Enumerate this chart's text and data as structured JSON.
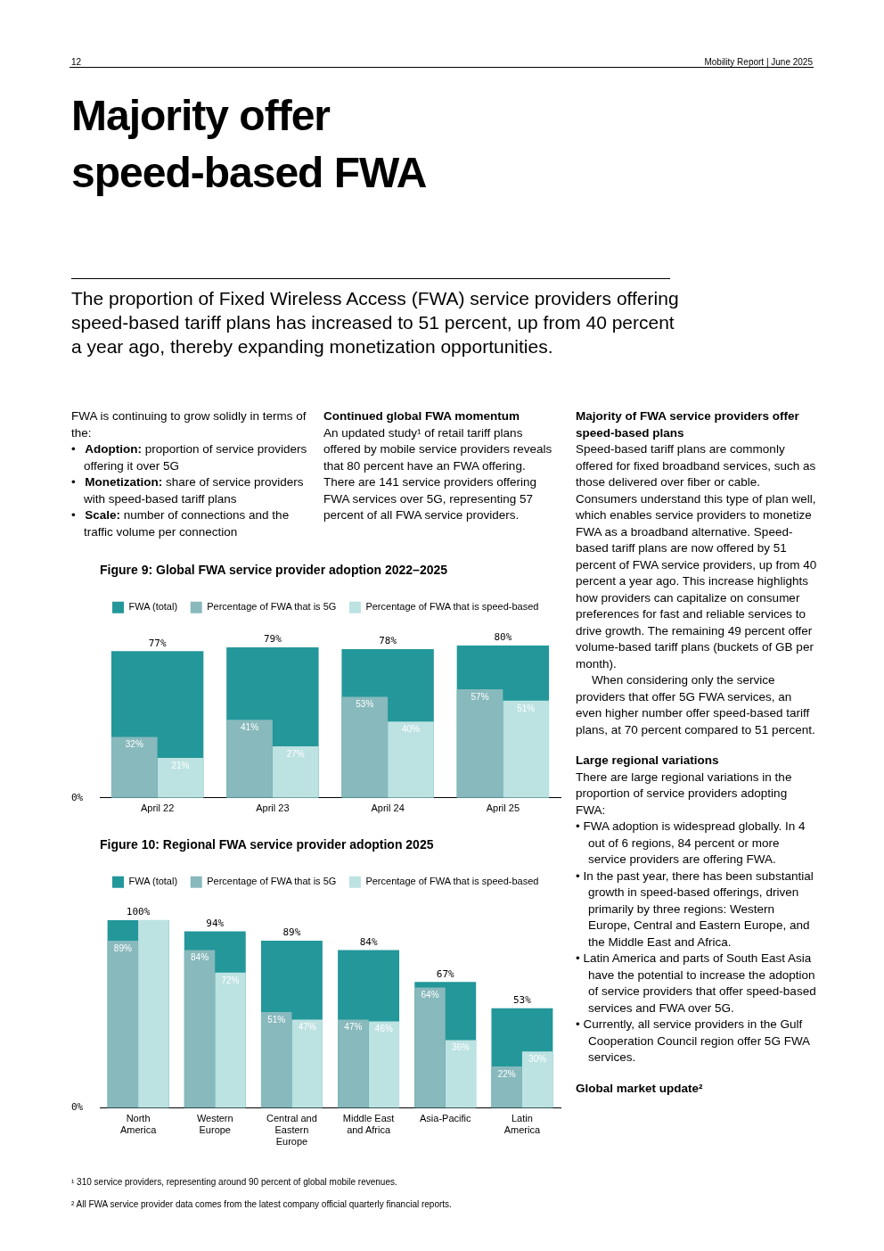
{
  "chart_data": [
    {
      "type": "other",
      "title": "Majority offer speed-based FWA",
      "subtitle": "The proportion of Fixed Wireless Access (FWA) service providers offering speed-based tariff plans has increased to 51 percent, up from 40 percent a year ago, thereby expanding monetization opportunities.",
      "annotations": [
        "12",
        "Mobility Report | June 2025",
        "FWA is continuing to grow solidly in terms of the:",
        "• Adoption: proportion of service providers offering it over 5G",
        "• Monetization: share of service providers with speed-based tariff plans",
        "• Scale: number of connections and the traffic volume per connection",
        "Continued global FWA momentum",
        "An updated study¹ of retail tariff plans offered by mobile service providers reveals that 80 percent have an FWA offering. There are 141 service providers offering FWA services over 5G, representing 57 percent of all FWA service providers.",
        "Majority of FWA service providers offer speed-based plans",
        "Speed-based tariff plans are commonly offered for fixed broadband services, such as those delivered over fiber or cable. Consumers understand this type of plan well, which enables service providers to monetize FWA as a broadband alternative. Speed-based tariff plans are now offered by 51 percent of FWA service providers, up from 40 percent a year ago. This increase highlights how providers can capitalize on consumer preferences for fast and reliable services to drive growth. The remaining 49 percent offer volume-based tariff plans (buckets of GB per month).",
        "When considering only the service providers that offer 5G FWA services, an even higher number offer speed-based tariff plans, at 70 percent compared to 51 percent.",
        "Large regional variations",
        "There are large regional variations in the proportion of service providers adopting FWA:",
        "• FWA adoption is widespread globally. In 4 out of 6 regions, 84 percent or more service providers are offering FWA.",
        "• In the past year, there has been substantial growth in speed-based offerings, driven primarily by three regions: Western Europe, Central and Eastern Europe, and the Middle East and Africa.",
        "• Latin America and parts of South East Asia have the potential to increase the adoption of service providers that offer speed-based services and FWA over 5G.",
        "• Currently, all service providers in the Gulf Cooperation Council region offer 5G FWA services.",
        "Global market update²",
        "¹ 310 service providers, representing around 90 percent of global mobile revenues.",
        "² All FWA service provider data comes from the latest company official quarterly financial reports."
      ]
    },
    {
      "type": "bar",
      "title": "Figure 9: Global FWA service provider adoption 2022–2025",
      "categories": [
        "April 22",
        "April 23",
        "April 24",
        "April 25"
      ],
      "annotations": [
        "0%"
      ],
      "grid": false,
      "legend": "top left",
      "series": [
        {
          "name": "FWA (total)",
          "color": "#23979a",
          "values": [
            77,
            79,
            78,
            80
          ],
          "value_labels": [
            "77%",
            "79%",
            "78%",
            "80%"
          ]
        },
        {
          "name": "Percentage of FWA that is 5G",
          "color": "#88b9bc",
          "values": [
            32,
            41,
            53,
            57
          ],
          "value_labels": [
            "32%",
            "41%",
            "53%",
            "57%"
          ]
        },
        {
          "name": "Percentage of FWA that is speed-based",
          "color": "#bde2e2",
          "values": [
            21,
            27,
            40,
            51
          ],
          "value_labels": [
            "21%",
            "27%",
            "40%",
            "51%"
          ]
        }
      ]
    },
    {
      "type": "bar",
      "title": "Figure 10: Regional FWA service provider adoption 2025",
      "categories": [
        "North America",
        "Western Europe",
        "Central and Eastern Europe",
        "Middle East and Africa",
        "Asia-Pacific",
        "Latin America"
      ],
      "annotations": [
        "0%"
      ],
      "grid": false,
      "legend": "top left",
      "series": [
        {
          "name": "FWA (total)",
          "color": "#23979a",
          "values": [
            100,
            94,
            89,
            84,
            67,
            53
          ],
          "value_labels": [
            "100%",
            "94%",
            "89%",
            "84%",
            "67%",
            "53%"
          ]
        },
        {
          "name": "Percentage of FWA that is 5G",
          "color": "#88b9bc",
          "values": [
            89,
            84,
            51,
            47,
            64,
            22
          ],
          "value_labels": [
            "89%",
            "84%",
            "51%",
            "47%",
            "64%",
            "22%"
          ]
        },
        {
          "name": "Percentage of FWA that is speed-based",
          "color": "#bde2e2",
          "values": [
            100,
            72,
            47,
            46,
            36,
            30
          ],
          "value_labels": [
            null,
            "72%",
            "47%",
            "46%",
            "36%",
            "30%"
          ]
        }
      ]
    }
  ]
}
